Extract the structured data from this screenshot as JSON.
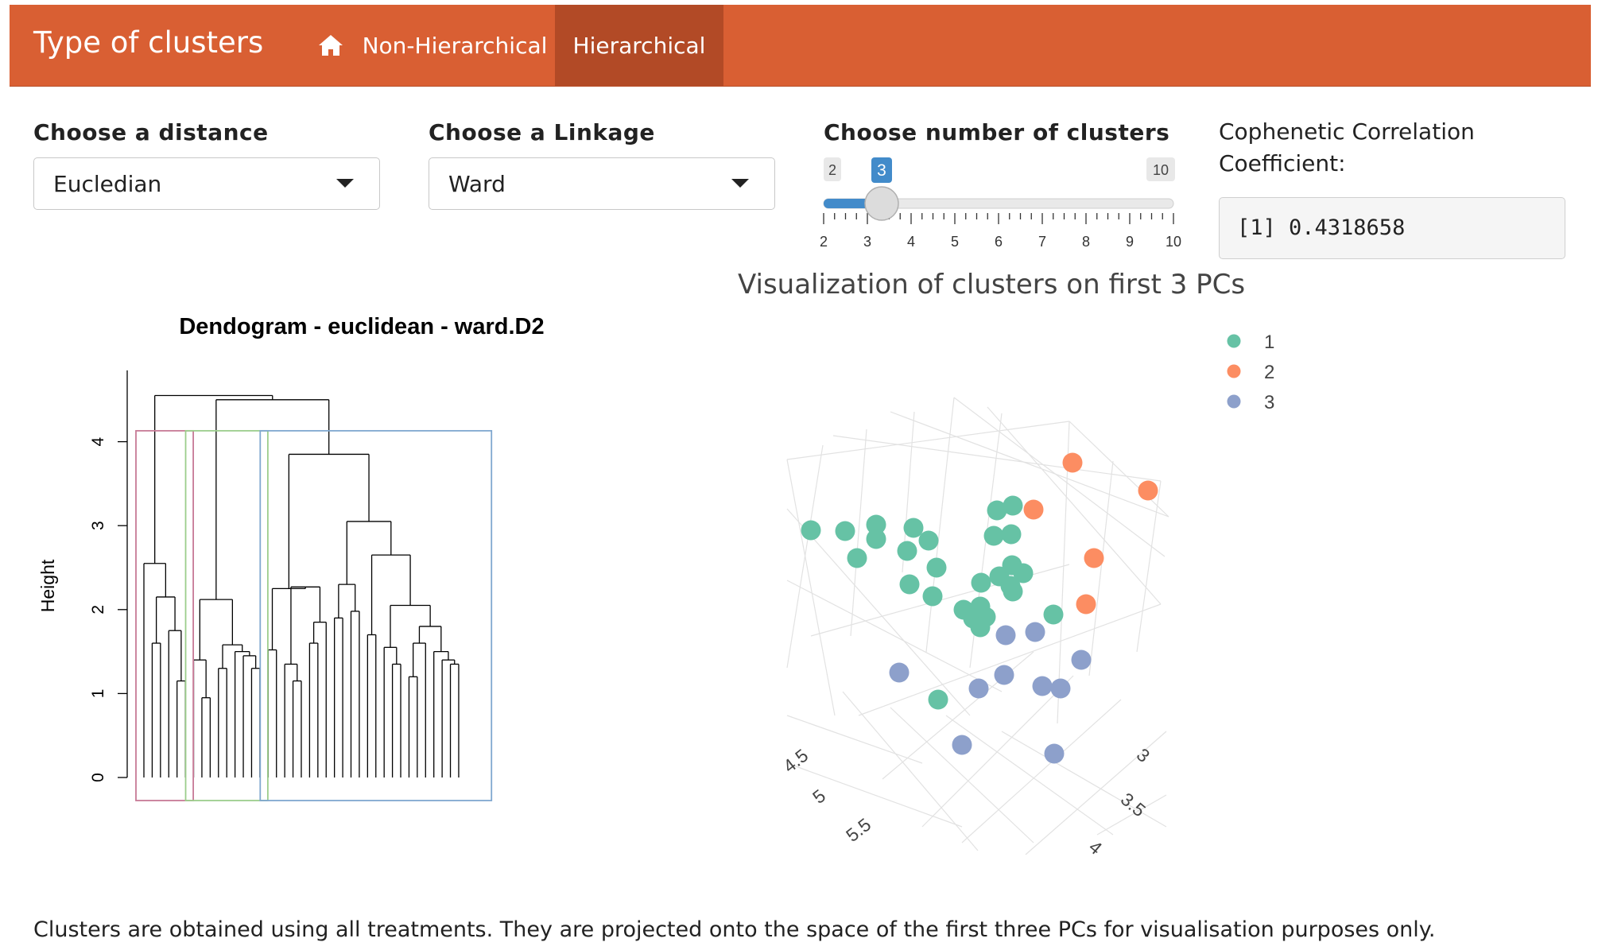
{
  "navbar": {
    "brand": "Type of clusters",
    "home_icon": "home-icon",
    "tabs": [
      {
        "label": "Non-Hierarchical",
        "active": false
      },
      {
        "label": "Hierarchical",
        "active": true
      }
    ],
    "bg_color": "#d95f33",
    "active_color": "#b24a26"
  },
  "controls": {
    "distance": {
      "label": "Choose a distance",
      "value": "Eucledian"
    },
    "linkage": {
      "label": "Choose a Linkage",
      "value": "Ward"
    },
    "clusters": {
      "label": "Choose number of clusters",
      "min": 2,
      "max": 10,
      "value": 3,
      "min_label": "2",
      "max_label": "10",
      "value_label": "3",
      "ticks": [
        "2",
        "3",
        "4",
        "5",
        "6",
        "7",
        "8",
        "9",
        "10"
      ]
    },
    "cophenetic": {
      "label": "Cophenetic Correlation Coefficient:",
      "value": "[1] 0.4318658"
    }
  },
  "chart_data": [
    {
      "type": "dendrogram",
      "title": "Dendogram - euclidean - ward.D2",
      "ylabel": "Height",
      "y_ticks": [
        "0",
        "1",
        "2",
        "3",
        "4"
      ],
      "ylim": [
        0,
        4.5
      ],
      "n_leaves": 42,
      "clusters": [
        {
          "id": 1,
          "leaves": 6,
          "color": "#c77a96"
        },
        {
          "id": 2,
          "leaves": 9,
          "color": "#9ccd8c"
        },
        {
          "id": 3,
          "leaves": 27,
          "color": "#7fa7cf"
        }
      ]
    },
    {
      "type": "scatter3d",
      "title": "Visualization of clusters on first 3 PCs",
      "legend": [
        {
          "name": "1",
          "color": "#66c2a5"
        },
        {
          "name": "2",
          "color": "#fc8d62"
        },
        {
          "name": "3",
          "color": "#8da0cb"
        }
      ],
      "legend_position": "top-right",
      "axis_tick_labels_left": [
        "4.5",
        "5",
        "5.5"
      ],
      "axis_tick_labels_right": [
        "3",
        "3.5",
        "4"
      ]
    }
  ],
  "footnote": "Clusters are obtained using all treatments. They are projected onto the space of the first three PCs for visualisation purposes only."
}
